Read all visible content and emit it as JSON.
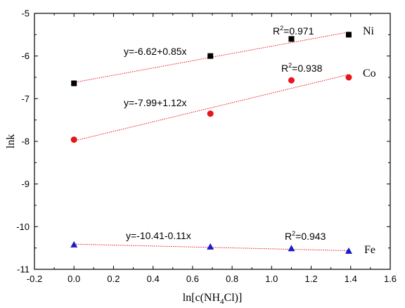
{
  "chart_data": {
    "type": "scatter",
    "xlabel": "ln[c(NH4Cl)]",
    "ylabel": "lnk",
    "xlim": [
      -0.2,
      1.6
    ],
    "ylim": [
      -11,
      -5
    ],
    "x_ticks": [
      "-0.2",
      "0.0",
      "0.2",
      "0.4",
      "0.6",
      "0.8",
      "1.0",
      "1.2",
      "1.4",
      "1.6"
    ],
    "y_ticks": [
      "-5",
      "-6",
      "-7",
      "-8",
      "-9",
      "-10",
      "-11"
    ],
    "grid": false,
    "series": [
      {
        "name": "Ni",
        "marker": "square",
        "color": "#000000",
        "x": [
          0.0,
          0.69,
          1.1,
          1.39
        ],
        "y": [
          -6.64,
          -6.0,
          -5.6,
          -5.5
        ],
        "fit": {
          "intercept": -6.62,
          "slope": 0.85
        },
        "equation": "y=-6.62+0.85x",
        "r2_prefix": "R",
        "r2_sup": "2",
        "r2_value": "=0.971"
      },
      {
        "name": "Co",
        "marker": "circle",
        "color": "#e8141c",
        "x": [
          0.0,
          0.69,
          1.1,
          1.39
        ],
        "y": [
          -7.96,
          -7.35,
          -6.57,
          -6.5
        ],
        "fit": {
          "intercept": -7.99,
          "slope": 1.12
        },
        "equation": "y=-7.99+1.12x",
        "r2_prefix": "R",
        "r2_sup": "2",
        "r2_value": "=0.938"
      },
      {
        "name": "Fe",
        "marker": "triangle",
        "color": "#1a1acc",
        "x": [
          0.0,
          0.69,
          1.1,
          1.39
        ],
        "y": [
          -10.42,
          -10.47,
          -10.51,
          -10.57
        ],
        "fit": {
          "intercept": -10.41,
          "slope": -0.11
        },
        "equation": "y=-10.41-0.11x",
        "r2_prefix": "R",
        "r2_sup": "2",
        "r2_value": "=0.943"
      }
    ],
    "fit_line_color": "#e8141c"
  }
}
